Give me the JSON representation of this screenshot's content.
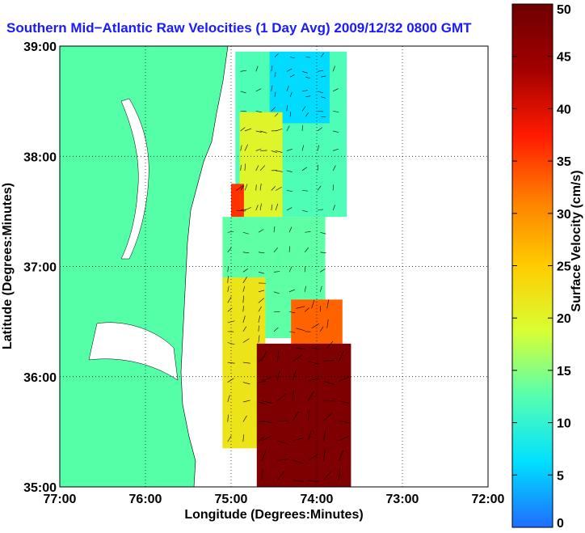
{
  "chart_data": {
    "type": "heatmap",
    "title": "Southern Mid−Atlantic Raw Velocities (1 Day Avg) 2009/12/32 0800 GMT",
    "xlabel": "Longitude (Degrees:Minutes)",
    "ylabel": "Latitude (Degrees:Minutes)",
    "colorbar_label": "Surface Velocity (cm/s)",
    "x_ticks": [
      "77:00",
      "76:00",
      "75:00",
      "74:00",
      "73:00",
      "72:00"
    ],
    "y_ticks": [
      "39:00",
      "38:00",
      "37:00",
      "36:00",
      "35:00"
    ],
    "colorbar_ticks": [
      "0",
      "5",
      "10",
      "15",
      "20",
      "25",
      "30",
      "35",
      "40",
      "45",
      "50"
    ],
    "xlim": [
      -77,
      -72
    ],
    "ylim": [
      35,
      39
    ],
    "clim": [
      0,
      50
    ],
    "grid": true,
    "colormap": [
      "#1e6dff",
      "#00e0ff",
      "#55ffb0",
      "#d8ff33",
      "#ffcc00",
      "#ff7f00",
      "#ff1a00",
      "#a30000",
      "#6e0000"
    ],
    "land_color": "#55ffa8",
    "velocity_regions": [
      {
        "lon": [
          -74.95,
          -73.65
        ],
        "lat": [
          37.45,
          38.95
        ],
        "speed": 12
      },
      {
        "lon": [
          -74.55,
          -73.85
        ],
        "lat": [
          38.3,
          38.95
        ],
        "speed": 6
      },
      {
        "lon": [
          -74.9,
          -74.4
        ],
        "lat": [
          37.45,
          38.4
        ],
        "speed": 20
      },
      {
        "lon": [
          -75.0,
          -74.85
        ],
        "lat": [
          37.45,
          37.75
        ],
        "speed": 36
      },
      {
        "lon": [
          -75.1,
          -73.9
        ],
        "lat": [
          36.35,
          37.45
        ],
        "speed": 13
      },
      {
        "lon": [
          -75.1,
          -74.6
        ],
        "lat": [
          35.35,
          36.9
        ],
        "speed": 22
      },
      {
        "lon": [
          -74.3,
          -73.7
        ],
        "lat": [
          36.2,
          36.7
        ],
        "speed": 33
      },
      {
        "lon": [
          -74.7,
          -73.6
        ],
        "lat": [
          35.0,
          36.3
        ],
        "speed": 48
      }
    ]
  }
}
